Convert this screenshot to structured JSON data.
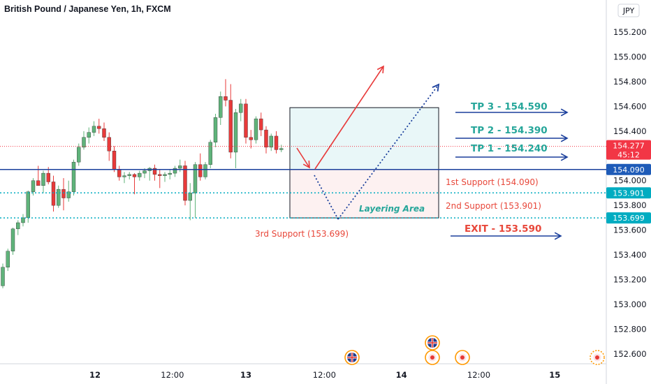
{
  "title": "British Pound / Japanese Yen, 1h, FXCM",
  "currency_badge": "JPY",
  "colors": {
    "up": "#5fb37a",
    "down": "#e83a3a",
    "blue_line": "#1a3f9c",
    "teal": "#26a69a",
    "red_text": "#e8473a",
    "price_tag": "#f23645",
    "support_tag": "#1e5bb8",
    "cyan_tag": "#00acc1",
    "zone_top": "#e9f7f8",
    "zone_bottom": "#fdf1f1"
  },
  "chart_data": {
    "type": "candlestick",
    "ylim": [
      152.52,
      155.46
    ],
    "yticks": [
      "155.200",
      "155.000",
      "154.800",
      "154.600",
      "154.400",
      "154.200",
      "154.000",
      "153.800",
      "153.600",
      "153.400",
      "153.200",
      "153.000",
      "152.800",
      "152.600"
    ],
    "xticks": [
      {
        "label": "12",
        "bold": true,
        "i": 18.2
      },
      {
        "label": "12:00",
        "bold": false,
        "i": 33.5
      },
      {
        "label": "13",
        "bold": true,
        "i": 48
      },
      {
        "label": "12:00",
        "bold": false,
        "i": 63.5
      },
      {
        "label": "14",
        "bold": true,
        "i": 78.7
      },
      {
        "label": "12:00",
        "bold": false,
        "i": 94
      },
      {
        "label": "15",
        "bold": true,
        "i": 109
      }
    ],
    "candles": [
      {
        "o": 153.15,
        "h": 153.33,
        "l": 153.13,
        "c": 153.3
      },
      {
        "o": 153.3,
        "h": 153.45,
        "l": 153.27,
        "c": 153.43
      },
      {
        "o": 153.43,
        "h": 153.62,
        "l": 153.4,
        "c": 153.61
      },
      {
        "o": 153.61,
        "h": 153.68,
        "l": 153.56,
        "c": 153.66
      },
      {
        "o": 153.66,
        "h": 153.73,
        "l": 153.63,
        "c": 153.7
      },
      {
        "o": 153.7,
        "h": 153.92,
        "l": 153.66,
        "c": 153.91
      },
      {
        "o": 153.91,
        "h": 154.02,
        "l": 153.88,
        "c": 154.0
      },
      {
        "o": 154.0,
        "h": 154.12,
        "l": 153.97,
        "c": 153.96
      },
      {
        "o": 153.96,
        "h": 154.08,
        "l": 153.9,
        "c": 154.06
      },
      {
        "o": 154.06,
        "h": 154.11,
        "l": 153.97,
        "c": 153.99
      },
      {
        "o": 153.99,
        "h": 154.04,
        "l": 153.75,
        "c": 153.8
      },
      {
        "o": 153.8,
        "h": 153.96,
        "l": 153.78,
        "c": 153.93
      },
      {
        "o": 153.93,
        "h": 154.02,
        "l": 153.76,
        "c": 153.86
      },
      {
        "o": 153.86,
        "h": 154.0,
        "l": 153.83,
        "c": 153.91
      },
      {
        "o": 153.91,
        "h": 154.17,
        "l": 153.88,
        "c": 154.15
      },
      {
        "o": 154.15,
        "h": 154.3,
        "l": 154.12,
        "c": 154.27
      },
      {
        "o": 154.27,
        "h": 154.4,
        "l": 154.25,
        "c": 154.35
      },
      {
        "o": 154.35,
        "h": 154.43,
        "l": 154.3,
        "c": 154.39
      },
      {
        "o": 154.39,
        "h": 154.48,
        "l": 154.36,
        "c": 154.44
      },
      {
        "o": 154.44,
        "h": 154.5,
        "l": 154.38,
        "c": 154.42
      },
      {
        "o": 154.42,
        "h": 154.47,
        "l": 154.32,
        "c": 154.35
      },
      {
        "o": 154.35,
        "h": 154.39,
        "l": 154.16,
        "c": 154.24
      },
      {
        "o": 154.24,
        "h": 154.28,
        "l": 154.07,
        "c": 154.09
      },
      {
        "o": 154.09,
        "h": 154.12,
        "l": 154.0,
        "c": 154.03
      },
      {
        "o": 154.03,
        "h": 154.07,
        "l": 153.98,
        "c": 154.04
      },
      {
        "o": 154.04,
        "h": 154.07,
        "l": 154.01,
        "c": 154.05
      },
      {
        "o": 154.05,
        "h": 154.06,
        "l": 153.89,
        "c": 154.03
      },
      {
        "o": 154.03,
        "h": 154.08,
        "l": 154.0,
        "c": 154.06
      },
      {
        "o": 154.06,
        "h": 154.1,
        "l": 154.02,
        "c": 154.08
      },
      {
        "o": 154.08,
        "h": 154.11,
        "l": 154.0,
        "c": 154.1
      },
      {
        "o": 154.1,
        "h": 154.13,
        "l": 154.0,
        "c": 154.05
      },
      {
        "o": 154.05,
        "h": 154.09,
        "l": 153.94,
        "c": 154.04
      },
      {
        "o": 154.04,
        "h": 154.07,
        "l": 153.99,
        "c": 154.05
      },
      {
        "o": 154.05,
        "h": 154.09,
        "l": 154.01,
        "c": 154.06
      },
      {
        "o": 154.06,
        "h": 154.12,
        "l": 154.03,
        "c": 154.1
      },
      {
        "o": 154.1,
        "h": 154.17,
        "l": 154.07,
        "c": 154.12
      },
      {
        "o": 154.12,
        "h": 154.16,
        "l": 153.8,
        "c": 153.84
      },
      {
        "o": 153.84,
        "h": 153.98,
        "l": 153.68,
        "c": 153.9
      },
      {
        "o": 153.9,
        "h": 154.15,
        "l": 153.7,
        "c": 154.13
      },
      {
        "o": 154.13,
        "h": 154.22,
        "l": 154.0,
        "c": 154.03
      },
      {
        "o": 154.03,
        "h": 154.15,
        "l": 154.01,
        "c": 154.13
      },
      {
        "o": 154.13,
        "h": 154.33,
        "l": 154.1,
        "c": 154.31
      },
      {
        "o": 154.31,
        "h": 154.54,
        "l": 154.27,
        "c": 154.51
      },
      {
        "o": 154.51,
        "h": 154.72,
        "l": 154.45,
        "c": 154.68
      },
      {
        "o": 154.68,
        "h": 154.82,
        "l": 154.6,
        "c": 154.65
      },
      {
        "o": 154.65,
        "h": 154.78,
        "l": 154.18,
        "c": 154.23
      },
      {
        "o": 154.23,
        "h": 154.58,
        "l": 154.1,
        "c": 154.55
      },
      {
        "o": 154.55,
        "h": 154.66,
        "l": 154.48,
        "c": 154.62
      },
      {
        "o": 154.62,
        "h": 154.66,
        "l": 154.3,
        "c": 154.35
      },
      {
        "o": 154.35,
        "h": 154.41,
        "l": 154.26,
        "c": 154.33
      },
      {
        "o": 154.33,
        "h": 154.52,
        "l": 154.3,
        "c": 154.5
      },
      {
        "o": 154.5,
        "h": 154.55,
        "l": 154.36,
        "c": 154.41
      },
      {
        "o": 154.41,
        "h": 154.44,
        "l": 154.22,
        "c": 154.27
      },
      {
        "o": 154.27,
        "h": 154.38,
        "l": 154.24,
        "c": 154.36
      },
      {
        "o": 154.36,
        "h": 154.4,
        "l": 154.22,
        "c": 154.25
      },
      {
        "o": 154.25,
        "h": 154.29,
        "l": 154.23,
        "c": 154.26
      }
    ]
  },
  "price_levels": {
    "current_price": "154.277",
    "countdown": "45:12",
    "support_1": "154.090",
    "support_2": "153.901",
    "support_3": "153.699"
  },
  "annotations": {
    "tp3": "TP 3 - 154.590",
    "tp2": "TP 2 - 154.390",
    "tp1": "TP 1 - 154.240",
    "exit": "EXIT - 153.590",
    "support_1_label": "1st Support (154.090)",
    "support_2_label": "2nd Support (153.901)",
    "support_3_label": "3rd Support (153.699)",
    "layering_area": "Layering Area"
  }
}
